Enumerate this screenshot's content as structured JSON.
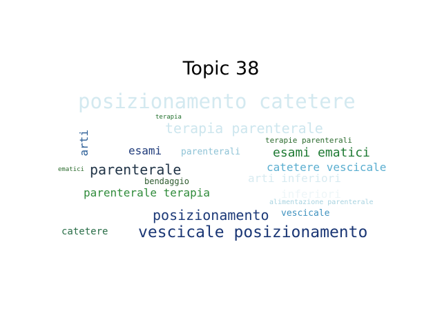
{
  "title": "Topic 38",
  "words": [
    {
      "text": "posizionamento catetere",
      "color": "#d3e9f0"
    },
    {
      "text": "terapia",
      "color": "#1f6e2a"
    },
    {
      "text": "terapia parenterale",
      "color": "#cde6ee"
    },
    {
      "text": "arti",
      "color": "#2a5d96"
    },
    {
      "text": "terapie parenterali",
      "color": "#2b6a2d"
    },
    {
      "text": "esami",
      "color": "#1f3b7a"
    },
    {
      "text": "parenterali",
      "color": "#8fc3d6"
    },
    {
      "text": "esami ematici",
      "color": "#1e7a33"
    },
    {
      "text": "ematici",
      "color": "#2a6b2c"
    },
    {
      "text": "parenterale",
      "color": "#223548"
    },
    {
      "text": "catetere vescicale",
      "color": "#5aaed0"
    },
    {
      "text": "bendaggio",
      "color": "#2e5a2f"
    },
    {
      "text": "arti inferiori",
      "color": "#d8ebf1"
    },
    {
      "text": "parenterale terapia",
      "color": "#2f8b3a"
    },
    {
      "text": "inferiori",
      "color": "#eef6f8"
    },
    {
      "text": "alimentazione parenterale",
      "color": "#a8d3e0"
    },
    {
      "text": "posizionamento",
      "color": "#1d3a78"
    },
    {
      "text": "vescicale",
      "color": "#3f92bf"
    },
    {
      "text": "catetere",
      "color": "#2a6e48"
    },
    {
      "text": "vescicale posizionamento",
      "color": "#1b3775"
    }
  ]
}
